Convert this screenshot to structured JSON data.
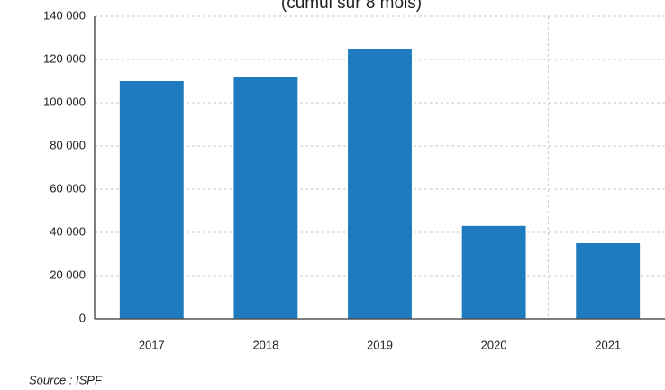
{
  "chart_data": {
    "type": "bar",
    "title": "(cumul sur 8 mois)",
    "categories": [
      "2017",
      "2018",
      "2019",
      "2020",
      "2021"
    ],
    "values": [
      110000,
      112000,
      125000,
      43000,
      35000
    ],
    "color": "#1f7bbf",
    "ylim": [
      0,
      140000
    ],
    "yticks": [
      0,
      {
        "value": 20000,
        "label": "20 000"
      },
      {
        "value": 40000,
        "label": "40 000"
      },
      {
        "value": 60000,
        "label": "60 000"
      },
      {
        "value": 80000,
        "label": "80 000"
      },
      {
        "value": 100000,
        "label": "100 000"
      },
      {
        "value": 120000,
        "label": "120 000"
      },
      {
        "value": 140000,
        "label": "140 000"
      }
    ],
    "grid": true,
    "source": "Source : ISPF"
  }
}
